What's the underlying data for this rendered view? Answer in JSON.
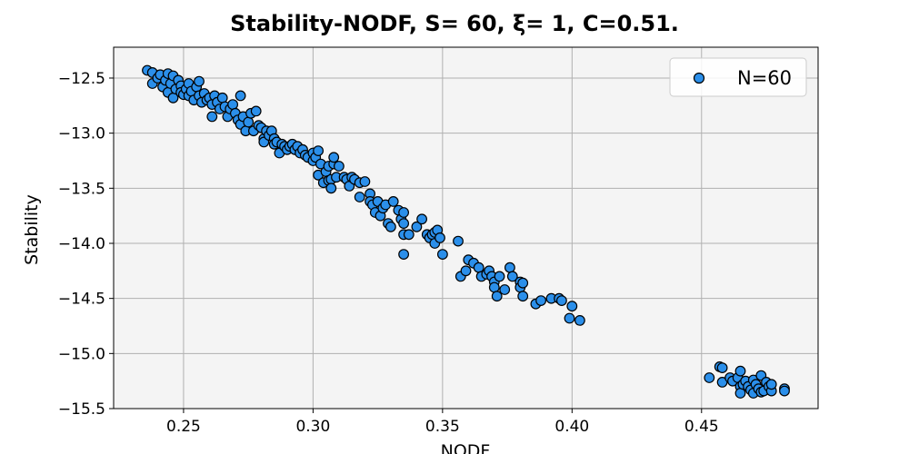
{
  "chart_data": {
    "type": "scatter",
    "title": "Stability-NODF, S= 60, ξ= 1, C=0.51.",
    "xlabel": "NODF",
    "ylabel": "Stability",
    "xlim": [
      0.223,
      0.495
    ],
    "ylim": [
      -15.5,
      -12.22
    ],
    "xticks": [
      0.25,
      0.3,
      0.35,
      0.4,
      0.45
    ],
    "xtick_labels": [
      "0.25",
      "0.30",
      "0.35",
      "0.40",
      "0.45"
    ],
    "yticks": [
      -12.5,
      -13.0,
      -13.5,
      -14.0,
      -14.5,
      -15.0,
      -15.5
    ],
    "ytick_labels": [
      "−12.5",
      "−13.0",
      "−13.5",
      "−14.0",
      "−14.5",
      "−15.0",
      "−15.5"
    ],
    "grid": true,
    "legend_position": "top-right",
    "colors": {
      "marker_fill": "#2b8fea",
      "marker_edge": "#000000",
      "plot_bg": "#f4f4f4",
      "grid": "#b0b0b0"
    },
    "series": [
      {
        "name": "N=60",
        "points": [
          [
            0.236,
            -12.43
          ],
          [
            0.238,
            -12.45
          ],
          [
            0.238,
            -12.55
          ],
          [
            0.24,
            -12.5
          ],
          [
            0.241,
            -12.47
          ],
          [
            0.242,
            -12.58
          ],
          [
            0.243,
            -12.52
          ],
          [
            0.244,
            -12.46
          ],
          [
            0.244,
            -12.63
          ],
          [
            0.245,
            -12.55
          ],
          [
            0.246,
            -12.48
          ],
          [
            0.246,
            -12.68
          ],
          [
            0.247,
            -12.6
          ],
          [
            0.248,
            -12.52
          ],
          [
            0.249,
            -12.57
          ],
          [
            0.249,
            -12.63
          ],
          [
            0.25,
            -12.65
          ],
          [
            0.251,
            -12.6
          ],
          [
            0.252,
            -12.55
          ],
          [
            0.252,
            -12.66
          ],
          [
            0.253,
            -12.62
          ],
          [
            0.254,
            -12.7
          ],
          [
            0.255,
            -12.58
          ],
          [
            0.256,
            -12.53
          ],
          [
            0.256,
            -12.66
          ],
          [
            0.257,
            -12.72
          ],
          [
            0.258,
            -12.64
          ],
          [
            0.259,
            -12.7
          ],
          [
            0.26,
            -12.68
          ],
          [
            0.261,
            -12.74
          ],
          [
            0.261,
            -12.85
          ],
          [
            0.262,
            -12.66
          ],
          [
            0.263,
            -12.72
          ],
          [
            0.264,
            -12.78
          ],
          [
            0.265,
            -12.68
          ],
          [
            0.266,
            -12.76
          ],
          [
            0.267,
            -12.85
          ],
          [
            0.268,
            -12.78
          ],
          [
            0.269,
            -12.74
          ],
          [
            0.27,
            -12.82
          ],
          [
            0.271,
            -12.88
          ],
          [
            0.272,
            -12.92
          ],
          [
            0.272,
            -12.66
          ],
          [
            0.273,
            -12.85
          ],
          [
            0.274,
            -12.98
          ],
          [
            0.275,
            -12.9
          ],
          [
            0.276,
            -12.82
          ],
          [
            0.277,
            -12.98
          ],
          [
            0.278,
            -12.8
          ],
          [
            0.279,
            -12.93
          ],
          [
            0.28,
            -12.95
          ],
          [
            0.281,
            -13.05
          ],
          [
            0.281,
            -13.08
          ],
          [
            0.282,
            -12.98
          ],
          [
            0.283,
            -13.02
          ],
          [
            0.284,
            -12.98
          ],
          [
            0.285,
            -13.05
          ],
          [
            0.285,
            -13.1
          ],
          [
            0.286,
            -13.08
          ],
          [
            0.287,
            -13.18
          ],
          [
            0.288,
            -13.1
          ],
          [
            0.289,
            -13.12
          ],
          [
            0.29,
            -13.15
          ],
          [
            0.291,
            -13.12
          ],
          [
            0.292,
            -13.1
          ],
          [
            0.293,
            -13.15
          ],
          [
            0.294,
            -13.12
          ],
          [
            0.295,
            -13.18
          ],
          [
            0.296,
            -13.15
          ],
          [
            0.297,
            -13.2
          ],
          [
            0.298,
            -13.22
          ],
          [
            0.3,
            -13.18
          ],
          [
            0.3,
            -13.25
          ],
          [
            0.301,
            -13.22
          ],
          [
            0.302,
            -13.16
          ],
          [
            0.302,
            -13.38
          ],
          [
            0.303,
            -13.28
          ],
          [
            0.304,
            -13.45
          ],
          [
            0.305,
            -13.35
          ],
          [
            0.306,
            -13.3
          ],
          [
            0.306,
            -13.43
          ],
          [
            0.307,
            -13.42
          ],
          [
            0.307,
            -13.5
          ],
          [
            0.308,
            -13.28
          ],
          [
            0.308,
            -13.22
          ],
          [
            0.309,
            -13.4
          ],
          [
            0.31,
            -13.3
          ],
          [
            0.312,
            -13.4
          ],
          [
            0.313,
            -13.42
          ],
          [
            0.314,
            -13.48
          ],
          [
            0.315,
            -13.4
          ],
          [
            0.316,
            -13.42
          ],
          [
            0.318,
            -13.45
          ],
          [
            0.318,
            -13.58
          ],
          [
            0.32,
            -13.44
          ],
          [
            0.322,
            -13.55
          ],
          [
            0.322,
            -13.62
          ],
          [
            0.323,
            -13.65
          ],
          [
            0.324,
            -13.72
          ],
          [
            0.325,
            -13.62
          ],
          [
            0.326,
            -13.75
          ],
          [
            0.327,
            -13.68
          ],
          [
            0.328,
            -13.65
          ],
          [
            0.329,
            -13.82
          ],
          [
            0.33,
            -13.85
          ],
          [
            0.331,
            -13.62
          ],
          [
            0.333,
            -13.7
          ],
          [
            0.334,
            -13.78
          ],
          [
            0.335,
            -13.72
          ],
          [
            0.335,
            -13.82
          ],
          [
            0.335,
            -13.92
          ],
          [
            0.335,
            -14.1
          ],
          [
            0.337,
            -13.92
          ],
          [
            0.34,
            -13.85
          ],
          [
            0.342,
            -13.78
          ],
          [
            0.344,
            -13.92
          ],
          [
            0.345,
            -13.95
          ],
          [
            0.346,
            -13.92
          ],
          [
            0.347,
            -13.9
          ],
          [
            0.347,
            -14.0
          ],
          [
            0.348,
            -13.88
          ],
          [
            0.349,
            -13.95
          ],
          [
            0.35,
            -14.1
          ],
          [
            0.356,
            -13.98
          ],
          [
            0.357,
            -14.3
          ],
          [
            0.359,
            -14.25
          ],
          [
            0.36,
            -14.15
          ],
          [
            0.362,
            -14.18
          ],
          [
            0.364,
            -14.22
          ],
          [
            0.365,
            -14.3
          ],
          [
            0.367,
            -14.28
          ],
          [
            0.368,
            -14.25
          ],
          [
            0.369,
            -14.3
          ],
          [
            0.37,
            -14.35
          ],
          [
            0.37,
            -14.4
          ],
          [
            0.371,
            -14.48
          ],
          [
            0.372,
            -14.3
          ],
          [
            0.374,
            -14.42
          ],
          [
            0.376,
            -14.22
          ],
          [
            0.377,
            -14.3
          ],
          [
            0.38,
            -14.35
          ],
          [
            0.38,
            -14.4
          ],
          [
            0.381,
            -14.48
          ],
          [
            0.381,
            -14.36
          ],
          [
            0.386,
            -14.55
          ],
          [
            0.388,
            -14.52
          ],
          [
            0.392,
            -14.5
          ],
          [
            0.395,
            -14.5
          ],
          [
            0.396,
            -14.52
          ],
          [
            0.399,
            -14.68
          ],
          [
            0.4,
            -14.57
          ],
          [
            0.403,
            -14.7
          ],
          [
            0.453,
            -15.22
          ],
          [
            0.457,
            -15.12
          ],
          [
            0.458,
            -15.13
          ],
          [
            0.458,
            -15.26
          ],
          [
            0.461,
            -15.22
          ],
          [
            0.462,
            -15.25
          ],
          [
            0.464,
            -15.22
          ],
          [
            0.465,
            -15.16
          ],
          [
            0.465,
            -15.3
          ],
          [
            0.465,
            -15.36
          ],
          [
            0.466,
            -15.28
          ],
          [
            0.467,
            -15.25
          ],
          [
            0.468,
            -15.3
          ],
          [
            0.469,
            -15.33
          ],
          [
            0.47,
            -15.24
          ],
          [
            0.47,
            -15.36
          ],
          [
            0.471,
            -15.28
          ],
          [
            0.472,
            -15.32
          ],
          [
            0.473,
            -15.35
          ],
          [
            0.473,
            -15.2
          ],
          [
            0.474,
            -15.34
          ],
          [
            0.475,
            -15.26
          ],
          [
            0.476,
            -15.3
          ],
          [
            0.477,
            -15.34
          ],
          [
            0.477,
            -15.28
          ],
          [
            0.482,
            -15.32
          ],
          [
            0.482,
            -15.34
          ]
        ]
      }
    ]
  }
}
